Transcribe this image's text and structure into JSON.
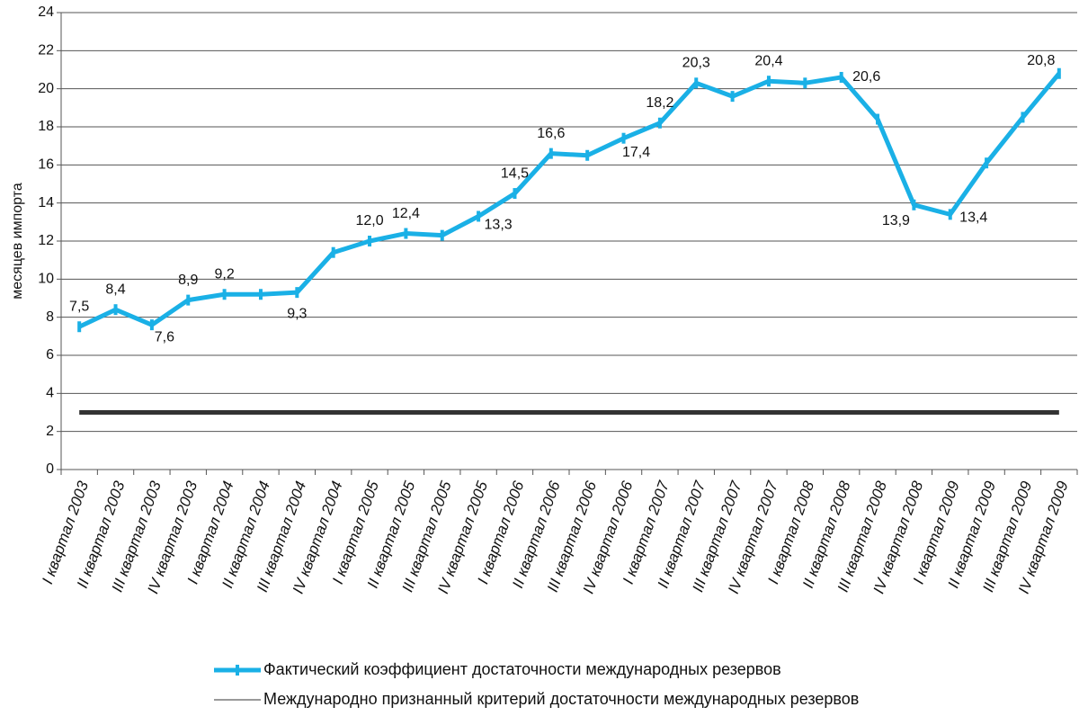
{
  "chart_data": {
    "type": "line",
    "y_label": "месяцев импорта",
    "categories": [
      "I квартал 2003",
      "II квартал 2003",
      "III квартал 2003",
      "IV квартал 2003",
      "I квартал 2004",
      "II квартал 2004",
      "III квартал 2004",
      "IV квартал 2004",
      "I квартал 2005",
      "II квартал 2005",
      "III квартал 2005",
      "IV квартал 2005",
      "I квартал 2006",
      "II квартал 2006",
      "III квартал 2006",
      "IV квартал 2006",
      "I квартал 2007",
      "II квартал 2007",
      "III квартал 2007",
      "IV квартал 2007",
      "I квартал 2008",
      "II квартал 2008",
      "III квартал 2008",
      "IV квартал 2008",
      "I квартал 2009",
      "II квартал 2009",
      "III квартал 2009",
      "IV квартал 2009"
    ],
    "series": [
      {
        "name": "Фактический коэффициент достаточности международных резервов",
        "color": "#1ab0e6",
        "values": [
          7.5,
          8.4,
          7.6,
          8.9,
          9.2,
          9.2,
          9.3,
          11.4,
          12.0,
          12.4,
          12.3,
          13.3,
          14.5,
          16.6,
          16.5,
          17.4,
          18.2,
          20.3,
          19.6,
          20.4,
          20.3,
          20.6,
          18.4,
          13.9,
          13.4,
          16.1,
          18.5,
          20.8
        ],
        "value_labels": [
          "7,5",
          "8,4",
          "7,6",
          "8,9",
          "9,2",
          null,
          "9,3",
          null,
          "12,0",
          "12,4",
          null,
          "13,3",
          "14,5",
          "16,6",
          null,
          "17,4",
          "18,2",
          "20,3",
          null,
          "20,4",
          null,
          "20,6",
          null,
          "13,9",
          "13,4",
          null,
          null,
          "20,8"
        ]
      },
      {
        "name": "Международно признанный критерий достаточности международных резервов",
        "color": "#333333",
        "values": [
          3,
          3,
          3,
          3,
          3,
          3,
          3,
          3,
          3,
          3,
          3,
          3,
          3,
          3,
          3,
          3,
          3,
          3,
          3,
          3,
          3,
          3,
          3,
          3,
          3,
          3,
          3,
          3
        ]
      }
    ],
    "ylim": [
      0,
      24
    ],
    "yticks": [
      0,
      2,
      4,
      6,
      8,
      10,
      12,
      14,
      16,
      18,
      20,
      22,
      24
    ],
    "grid": true
  }
}
